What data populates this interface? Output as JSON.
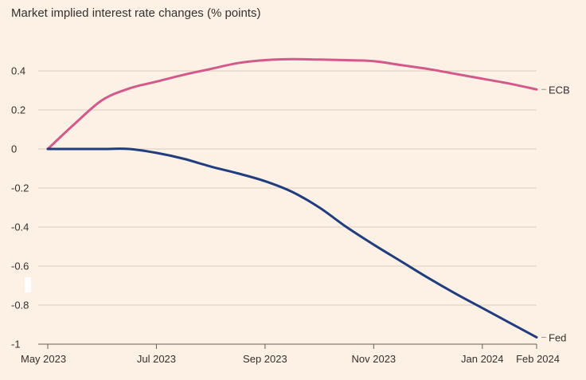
{
  "chart_data": {
    "type": "line",
    "title": "Market implied interest rate changes (% points)",
    "xlabel": "",
    "ylabel": "",
    "x_ticks": [
      {
        "label": "May 2023",
        "t": 0
      },
      {
        "label": "Jul 2023",
        "t": 2
      },
      {
        "label": "Sep 2023",
        "t": 4
      },
      {
        "label": "Nov 2023",
        "t": 6
      },
      {
        "label": "Jan 2024",
        "t": 8
      },
      {
        "label": "Feb 2024",
        "t": 9
      }
    ],
    "xlim": [
      0,
      9
    ],
    "y_ticks": [
      {
        "label": "0.4",
        "v": 0.4
      },
      {
        "label": "0.2",
        "v": 0.2
      },
      {
        "label": "0",
        "v": 0
      },
      {
        "label": "-0.2",
        "v": -0.2
      },
      {
        "label": "-0.4",
        "v": -0.4
      },
      {
        "label": "-0.6",
        "v": -0.6
      },
      {
        "label": "-0.8",
        "v": -0.8
      },
      {
        "label": "-1",
        "v": -1
      }
    ],
    "ylim": [
      -1,
      0.5
    ],
    "grid": true,
    "series": [
      {
        "name": "ECB",
        "color": "#d3598b",
        "points": [
          [
            0,
            0
          ],
          [
            0.5,
            0.13
          ],
          [
            1,
            0.25
          ],
          [
            1.5,
            0.31
          ],
          [
            2,
            0.345
          ],
          [
            2.5,
            0.38
          ],
          [
            3,
            0.41
          ],
          [
            3.5,
            0.44
          ],
          [
            4,
            0.455
          ],
          [
            4.5,
            0.46
          ],
          [
            5,
            0.458
          ],
          [
            5.5,
            0.455
          ],
          [
            6,
            0.45
          ],
          [
            6.5,
            0.43
          ],
          [
            7,
            0.41
          ],
          [
            7.5,
            0.385
          ],
          [
            8,
            0.36
          ],
          [
            8.5,
            0.335
          ],
          [
            9,
            0.305
          ]
        ]
      },
      {
        "name": "Fed",
        "color": "#1f3d7f",
        "points": [
          [
            0,
            0
          ],
          [
            0.5,
            0
          ],
          [
            1,
            0
          ],
          [
            1.5,
            0
          ],
          [
            2,
            -0.02
          ],
          [
            2.5,
            -0.05
          ],
          [
            3,
            -0.09
          ],
          [
            3.5,
            -0.125
          ],
          [
            4,
            -0.165
          ],
          [
            4.5,
            -0.22
          ],
          [
            5,
            -0.3
          ],
          [
            5.5,
            -0.4
          ],
          [
            6,
            -0.49
          ],
          [
            6.5,
            -0.575
          ],
          [
            7,
            -0.66
          ],
          [
            7.5,
            -0.74
          ],
          [
            8,
            -0.815
          ],
          [
            8.5,
            -0.89
          ],
          [
            9,
            -0.965
          ]
        ]
      }
    ]
  }
}
